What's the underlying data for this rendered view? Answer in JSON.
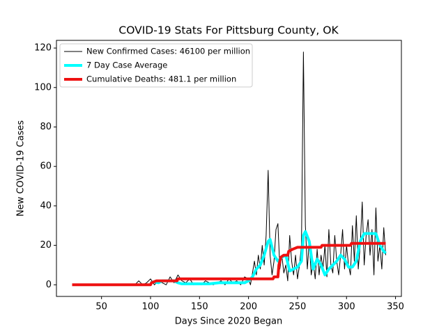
{
  "chart_data": {
    "type": "line",
    "title": "COVID-19 Stats For Pittsburg County, OK",
    "xlabel": "Days Since 2020 Began",
    "ylabel": "New COVID-19 Cases",
    "xlim": [
      4,
      356
    ],
    "ylim": [
      -5.9,
      123.9
    ],
    "xticks": [
      50,
      100,
      150,
      200,
      250,
      300,
      350
    ],
    "yticks": [
      0,
      20,
      40,
      60,
      80,
      100,
      120
    ],
    "legend": "upper left",
    "series": [
      {
        "name": "New Confirmed Cases: 46100 per million",
        "color": "#000000",
        "width": 1,
        "x": [
          20,
          84,
          88,
          92,
          96,
          100,
          104,
          108,
          112,
          116,
          120,
          124,
          128,
          132,
          136,
          140,
          144,
          148,
          152,
          156,
          160,
          164,
          168,
          172,
          176,
          180,
          184,
          188,
          192,
          196,
          200,
          202,
          204,
          206,
          208,
          210,
          212,
          214,
          216,
          218,
          220,
          222,
          224,
          226,
          228,
          230,
          232,
          234,
          236,
          238,
          240,
          242,
          244,
          246,
          248,
          250,
          252,
          254,
          256,
          258,
          260,
          262,
          264,
          266,
          268,
          270,
          272,
          274,
          276,
          278,
          280,
          282,
          284,
          286,
          288,
          290,
          292,
          294,
          296,
          298,
          300,
          302,
          304,
          306,
          308,
          310,
          312,
          314,
          316,
          318,
          320,
          322,
          324,
          326,
          328,
          330,
          332,
          334,
          336,
          338,
          340
        ],
        "values": [
          0,
          0,
          2,
          0,
          1,
          3,
          0,
          2,
          1,
          0,
          4,
          1,
          5,
          2,
          1,
          3,
          0,
          1,
          0,
          2,
          1,
          0,
          1,
          2,
          0,
          3,
          1,
          2,
          0,
          4,
          3,
          0,
          6,
          12,
          5,
          15,
          8,
          20,
          10,
          25,
          58,
          15,
          5,
          12,
          28,
          31,
          8,
          15,
          6,
          10,
          2,
          25,
          12,
          5,
          15,
          3,
          10,
          20,
          118,
          30,
          8,
          22,
          5,
          12,
          3,
          18,
          5,
          15,
          8,
          20,
          4,
          28,
          10,
          6,
          25,
          12,
          5,
          15,
          28,
          8,
          20,
          10,
          5,
          30,
          12,
          35,
          8,
          20,
          42,
          10,
          25,
          33,
          15,
          28,
          5,
          39,
          12,
          20,
          8,
          29,
          15
        ]
      },
      {
        "name": "7 Day Case Average",
        "color": "#00ffff",
        "width": 4,
        "x": [
          100,
          104,
          108,
          112,
          116,
          120,
          124,
          128,
          132,
          136,
          140,
          150,
          160,
          170,
          180,
          190,
          196,
          200,
          204,
          208,
          212,
          216,
          220,
          222,
          226,
          230,
          234,
          238,
          242,
          246,
          250,
          254,
          256,
          258,
          262,
          266,
          270,
          274,
          278,
          282,
          286,
          290,
          294,
          298,
          302,
          306,
          310,
          314,
          318,
          322,
          326,
          330,
          334,
          338,
          340
        ],
        "values": [
          1,
          1.5,
          1,
          2,
          2,
          2,
          2,
          1,
          0.5,
          0.5,
          0.5,
          0.5,
          0.5,
          1,
          1,
          1,
          1,
          2,
          4,
          8,
          10,
          15,
          22,
          23,
          15,
          12,
          14,
          15,
          7,
          8,
          9,
          12,
          25,
          27,
          22,
          8,
          13,
          10,
          5,
          8,
          10,
          12,
          15,
          13,
          9,
          9,
          12,
          22,
          26,
          26,
          26,
          26,
          20,
          17,
          16
        ]
      },
      {
        "name": "Cumulative Deaths: 481.1 per million",
        "color": "#ee1111",
        "width": 4,
        "x": [
          20,
          100,
          101,
          106,
          127,
          128,
          225,
          226,
          230,
          231,
          233,
          236,
          240,
          241,
          245,
          250,
          274,
          275,
          304,
          305,
          340
        ],
        "values": [
          0,
          0,
          1,
          2,
          2,
          3,
          3,
          4,
          4,
          10,
          14,
          15,
          15,
          17,
          18,
          19,
          19,
          20,
          20,
          21,
          21
        ]
      }
    ]
  }
}
